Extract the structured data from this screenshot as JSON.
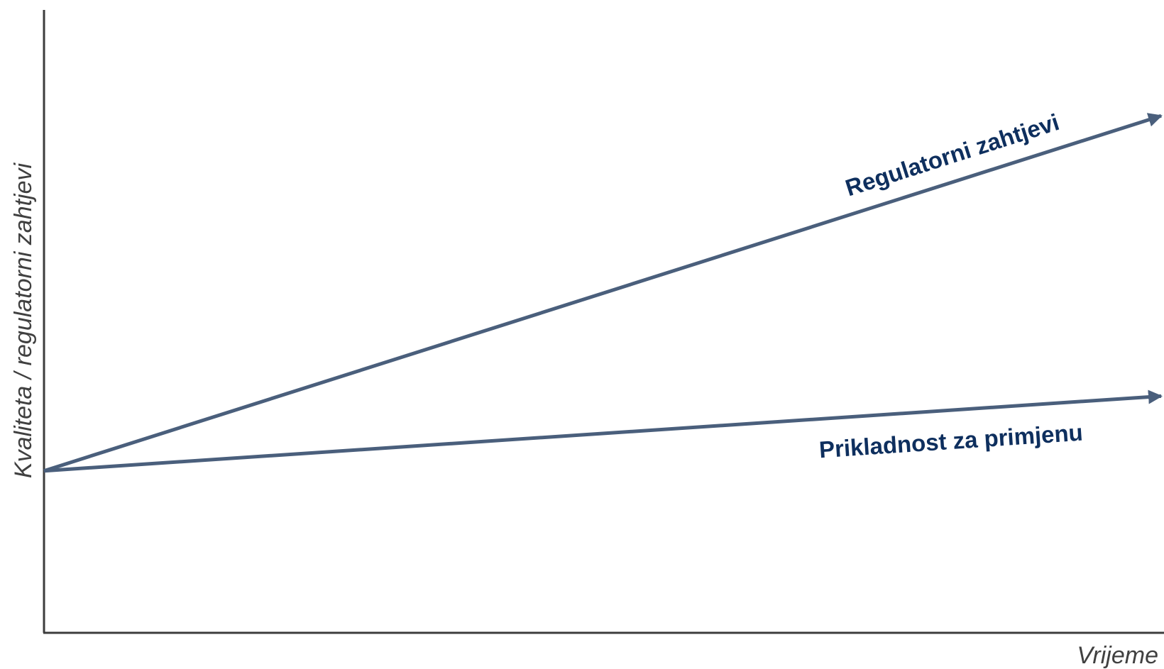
{
  "chart_data": {
    "type": "line",
    "title": "",
    "xlabel": "Vrijeme",
    "ylabel": "Kvaliteta / regulatorni zahtjevi",
    "xlim": [
      0,
      1
    ],
    "ylim": [
      0,
      1
    ],
    "grid": false,
    "legend": "none",
    "colors": {
      "axis": "#3c3c3c",
      "axis_label": "#404040",
      "line": "#4a5f7c",
      "series_label": "#0e2f5e"
    },
    "series": [
      {
        "name": "Regulatorni zahtjevi",
        "x": [
          0,
          1
        ],
        "y": [
          0.26,
          0.83
        ]
      },
      {
        "name": "Prikladnost za primjenu",
        "x": [
          0,
          1
        ],
        "y": [
          0.26,
          0.38
        ]
      }
    ]
  }
}
